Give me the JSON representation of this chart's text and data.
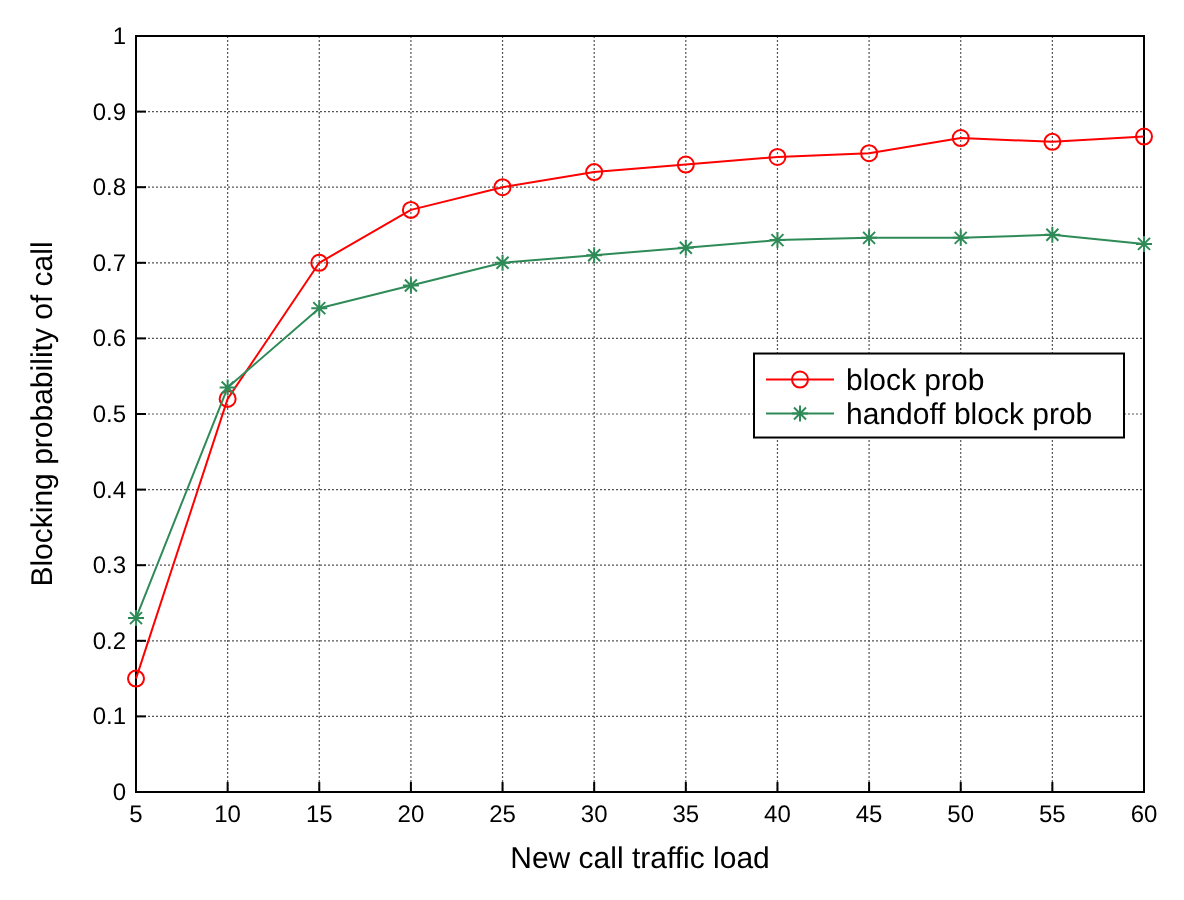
{
  "chart_data": {
    "type": "line",
    "xlabel": "New call traffic load",
    "ylabel": "Blocking probability of call",
    "x": [
      5,
      10,
      15,
      20,
      25,
      30,
      35,
      40,
      45,
      50,
      55,
      60
    ],
    "series": [
      {
        "name": "block prob",
        "color": "#ff0000",
        "marker": "circle",
        "values": [
          0.15,
          0.52,
          0.7,
          0.77,
          0.8,
          0.82,
          0.83,
          0.84,
          0.845,
          0.865,
          0.86,
          0.867
        ]
      },
      {
        "name": "handoff block prob",
        "color": "#2e8b57",
        "marker": "cross",
        "values": [
          0.23,
          0.535,
          0.64,
          0.67,
          0.7,
          0.71,
          0.72,
          0.73,
          0.733,
          0.733,
          0.737,
          0.725
        ]
      }
    ],
    "xlim": [
      5,
      60
    ],
    "xticks": [
      5,
      10,
      15,
      20,
      25,
      30,
      35,
      40,
      45,
      50,
      55,
      60
    ],
    "ylim": [
      0,
      1
    ],
    "yticks": [
      0,
      0.1,
      0.2,
      0.3,
      0.4,
      0.5,
      0.6,
      0.7,
      0.8,
      0.9,
      1
    ],
    "grid": true,
    "legend": "right",
    "line_style": "solid"
  }
}
